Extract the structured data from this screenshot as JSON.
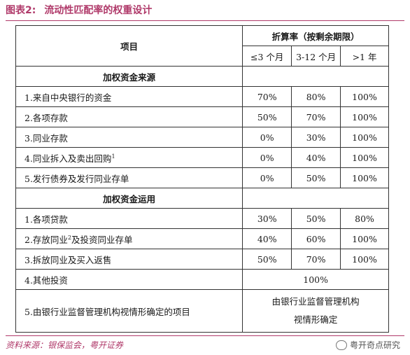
{
  "figure": {
    "label": "图表2:",
    "title": "流动性匹配率的权重设计"
  },
  "table": {
    "header_item": "项目",
    "header_rate": "折算率（按剩余期限）",
    "terms": [
      "≤3 个月",
      "3-12 个月",
      ">1 年"
    ],
    "sources_heading": "加权资金来源",
    "sources": [
      {
        "label": "1.来自中央银行的资金",
        "sup": "",
        "v": [
          "70%",
          "80%",
          "100%"
        ]
      },
      {
        "label": "2.各项存款",
        "sup": "",
        "v": [
          "50%",
          "70%",
          "100%"
        ]
      },
      {
        "label": "3.同业存款",
        "sup": "",
        "v": [
          "0%",
          "30%",
          "100%"
        ]
      },
      {
        "label": "4.同业拆入及卖出回购",
        "sup": "1",
        "v": [
          "0%",
          "40%",
          "100%"
        ]
      },
      {
        "label": "5.发行债券及发行同业存单",
        "sup": "",
        "v": [
          "0%",
          "50%",
          "100%"
        ]
      }
    ],
    "uses_heading": "加权资金运用",
    "uses": [
      {
        "label": "1.各项贷款",
        "v": [
          "30%",
          "50%",
          "80%"
        ]
      },
      {
        "label_a": "2.存放同业",
        "sup": "2",
        "label_b": "及投资同业存单",
        "v": [
          "40%",
          "60%",
          "100%"
        ]
      },
      {
        "label": "3.拆放同业及买入返售",
        "v": [
          "50%",
          "70%",
          "100%"
        ]
      }
    ],
    "other_investment_label": "4.其他投资",
    "other_investment_value": "100%",
    "regulator_label": "5.由银行业监督管理机构视情形确定的项目",
    "regulator_value_line1": "由银行业监督管理机构",
    "regulator_value_line2": "视情形确定"
  },
  "source_note": "资料来源：银保监会，粤开证券",
  "watermark": "粤开奇点研究",
  "colors": {
    "accent": "#b03a6a",
    "border": "#333333"
  },
  "icons": {
    "watermark": "wechat-icon"
  }
}
